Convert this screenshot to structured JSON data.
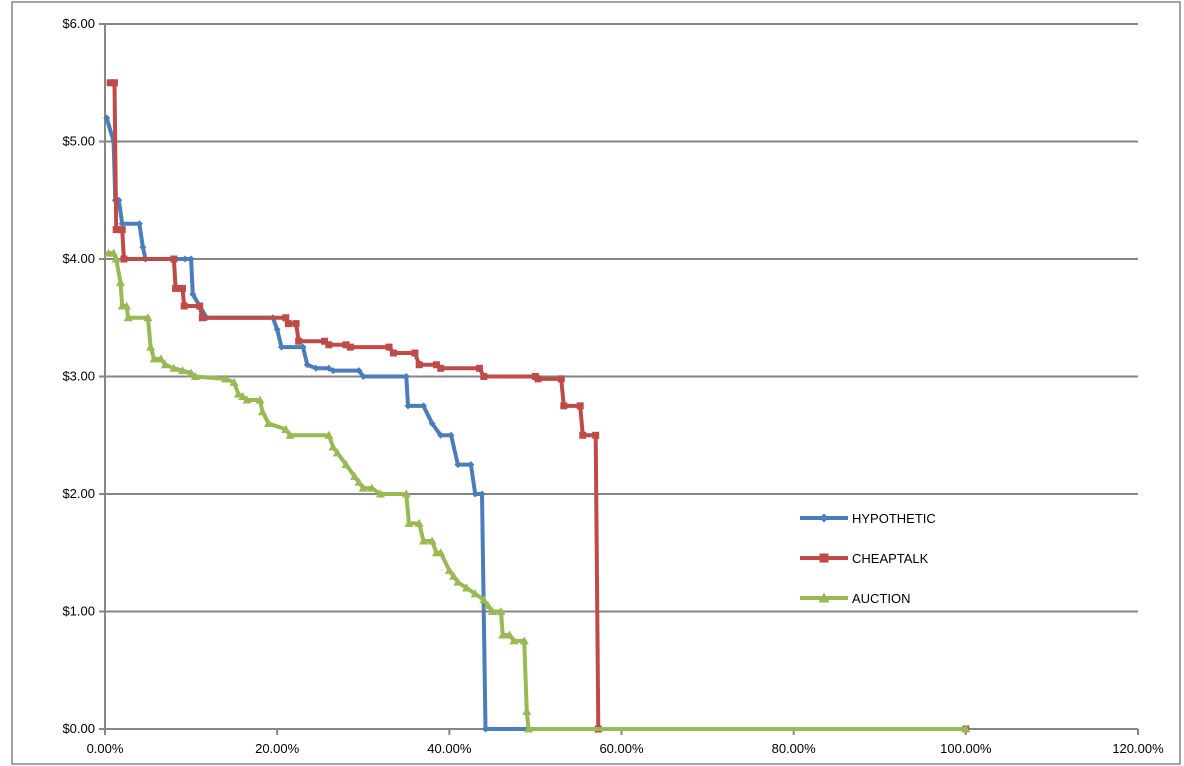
{
  "chart_data": {
    "type": "line",
    "title": "",
    "xlabel": "",
    "ylabel": "",
    "xlim": [
      0,
      1.2
    ],
    "ylim": [
      0,
      6
    ],
    "x_ticks": [
      "0.00%",
      "20.00%",
      "40.00%",
      "60.00%",
      "80.00%",
      "100.00%",
      "120.00%"
    ],
    "y_ticks": [
      "$0.00",
      "$1.00",
      "$2.00",
      "$3.00",
      "$4.00",
      "$5.00",
      "$6.00"
    ],
    "grid": "horizontal",
    "legend_position": "right-center",
    "series": [
      {
        "name": "HYPOTHETIC",
        "color": "#4a7ebb",
        "marker": "diamond",
        "points": [
          [
            0.002,
            5.2
          ],
          [
            0.01,
            5.0
          ],
          [
            0.012,
            4.5
          ],
          [
            0.016,
            4.5
          ],
          [
            0.02,
            4.3
          ],
          [
            0.04,
            4.3
          ],
          [
            0.044,
            4.1
          ],
          [
            0.047,
            4.0
          ],
          [
            0.093,
            4.0
          ],
          [
            0.1,
            4.0
          ],
          [
            0.102,
            3.7
          ],
          [
            0.11,
            3.6
          ],
          [
            0.118,
            3.5
          ],
          [
            0.195,
            3.5
          ],
          [
            0.2,
            3.4
          ],
          [
            0.205,
            3.25
          ],
          [
            0.23,
            3.25
          ],
          [
            0.235,
            3.1
          ],
          [
            0.245,
            3.07
          ],
          [
            0.26,
            3.07
          ],
          [
            0.265,
            3.05
          ],
          [
            0.295,
            3.05
          ],
          [
            0.3,
            3.0
          ],
          [
            0.35,
            3.0
          ],
          [
            0.352,
            2.75
          ],
          [
            0.37,
            2.75
          ],
          [
            0.38,
            2.6
          ],
          [
            0.39,
            2.5
          ],
          [
            0.402,
            2.5
          ],
          [
            0.41,
            2.25
          ],
          [
            0.425,
            2.25
          ],
          [
            0.43,
            2.0
          ],
          [
            0.438,
            2.0
          ],
          [
            0.442,
            0.0
          ],
          [
            0.49,
            0.0
          ],
          [
            1.0,
            0.0
          ]
        ]
      },
      {
        "name": "CHEAPTALK",
        "color": "#be4b48",
        "marker": "square",
        "points": [
          [
            0.006,
            5.5
          ],
          [
            0.011,
            5.5
          ],
          [
            0.013,
            4.25
          ],
          [
            0.02,
            4.25
          ],
          [
            0.022,
            4.0
          ],
          [
            0.08,
            4.0
          ],
          [
            0.082,
            3.75
          ],
          [
            0.09,
            3.75
          ],
          [
            0.092,
            3.6
          ],
          [
            0.11,
            3.6
          ],
          [
            0.113,
            3.5
          ],
          [
            0.21,
            3.5
          ],
          [
            0.213,
            3.45
          ],
          [
            0.222,
            3.45
          ],
          [
            0.225,
            3.3
          ],
          [
            0.255,
            3.3
          ],
          [
            0.26,
            3.27
          ],
          [
            0.28,
            3.27
          ],
          [
            0.285,
            3.25
          ],
          [
            0.33,
            3.25
          ],
          [
            0.335,
            3.2
          ],
          [
            0.36,
            3.2
          ],
          [
            0.365,
            3.1
          ],
          [
            0.385,
            3.1
          ],
          [
            0.39,
            3.07
          ],
          [
            0.435,
            3.07
          ],
          [
            0.44,
            3.0
          ],
          [
            0.5,
            3.0
          ],
          [
            0.503,
            2.98
          ],
          [
            0.53,
            2.98
          ],
          [
            0.533,
            2.75
          ],
          [
            0.552,
            2.75
          ],
          [
            0.555,
            2.5
          ],
          [
            0.57,
            2.5
          ],
          [
            0.573,
            0.0
          ],
          [
            1.0,
            0.0
          ]
        ]
      },
      {
        "name": "AUCTION",
        "color": "#98b954",
        "marker": "triangle",
        "points": [
          [
            0.004,
            4.05
          ],
          [
            0.01,
            4.05
          ],
          [
            0.013,
            4.0
          ],
          [
            0.018,
            3.8
          ],
          [
            0.02,
            3.6
          ],
          [
            0.025,
            3.6
          ],
          [
            0.027,
            3.5
          ],
          [
            0.05,
            3.5
          ],
          [
            0.053,
            3.25
          ],
          [
            0.057,
            3.15
          ],
          [
            0.065,
            3.15
          ],
          [
            0.07,
            3.1
          ],
          [
            0.08,
            3.07
          ],
          [
            0.09,
            3.05
          ],
          [
            0.1,
            3.03
          ],
          [
            0.105,
            3.0
          ],
          [
            0.14,
            2.98
          ],
          [
            0.15,
            2.95
          ],
          [
            0.155,
            2.85
          ],
          [
            0.16,
            2.83
          ],
          [
            0.165,
            2.8
          ],
          [
            0.18,
            2.8
          ],
          [
            0.183,
            2.7
          ],
          [
            0.19,
            2.6
          ],
          [
            0.21,
            2.55
          ],
          [
            0.215,
            2.5
          ],
          [
            0.26,
            2.5
          ],
          [
            0.265,
            2.4
          ],
          [
            0.27,
            2.35
          ],
          [
            0.28,
            2.25
          ],
          [
            0.29,
            2.15
          ],
          [
            0.295,
            2.1
          ],
          [
            0.3,
            2.05
          ],
          [
            0.31,
            2.05
          ],
          [
            0.32,
            2.0
          ],
          [
            0.35,
            2.0
          ],
          [
            0.353,
            1.75
          ],
          [
            0.365,
            1.75
          ],
          [
            0.37,
            1.6
          ],
          [
            0.38,
            1.6
          ],
          [
            0.385,
            1.5
          ],
          [
            0.39,
            1.5
          ],
          [
            0.4,
            1.35
          ],
          [
            0.405,
            1.3
          ],
          [
            0.41,
            1.25
          ],
          [
            0.42,
            1.2
          ],
          [
            0.43,
            1.15
          ],
          [
            0.44,
            1.1
          ],
          [
            0.445,
            1.05
          ],
          [
            0.45,
            1.0
          ],
          [
            0.46,
            1.0
          ],
          [
            0.462,
            0.8
          ],
          [
            0.47,
            0.8
          ],
          [
            0.475,
            0.75
          ],
          [
            0.487,
            0.75
          ],
          [
            0.49,
            0.15
          ],
          [
            0.492,
            0.0
          ],
          [
            1.0,
            0.0
          ]
        ]
      }
    ]
  }
}
